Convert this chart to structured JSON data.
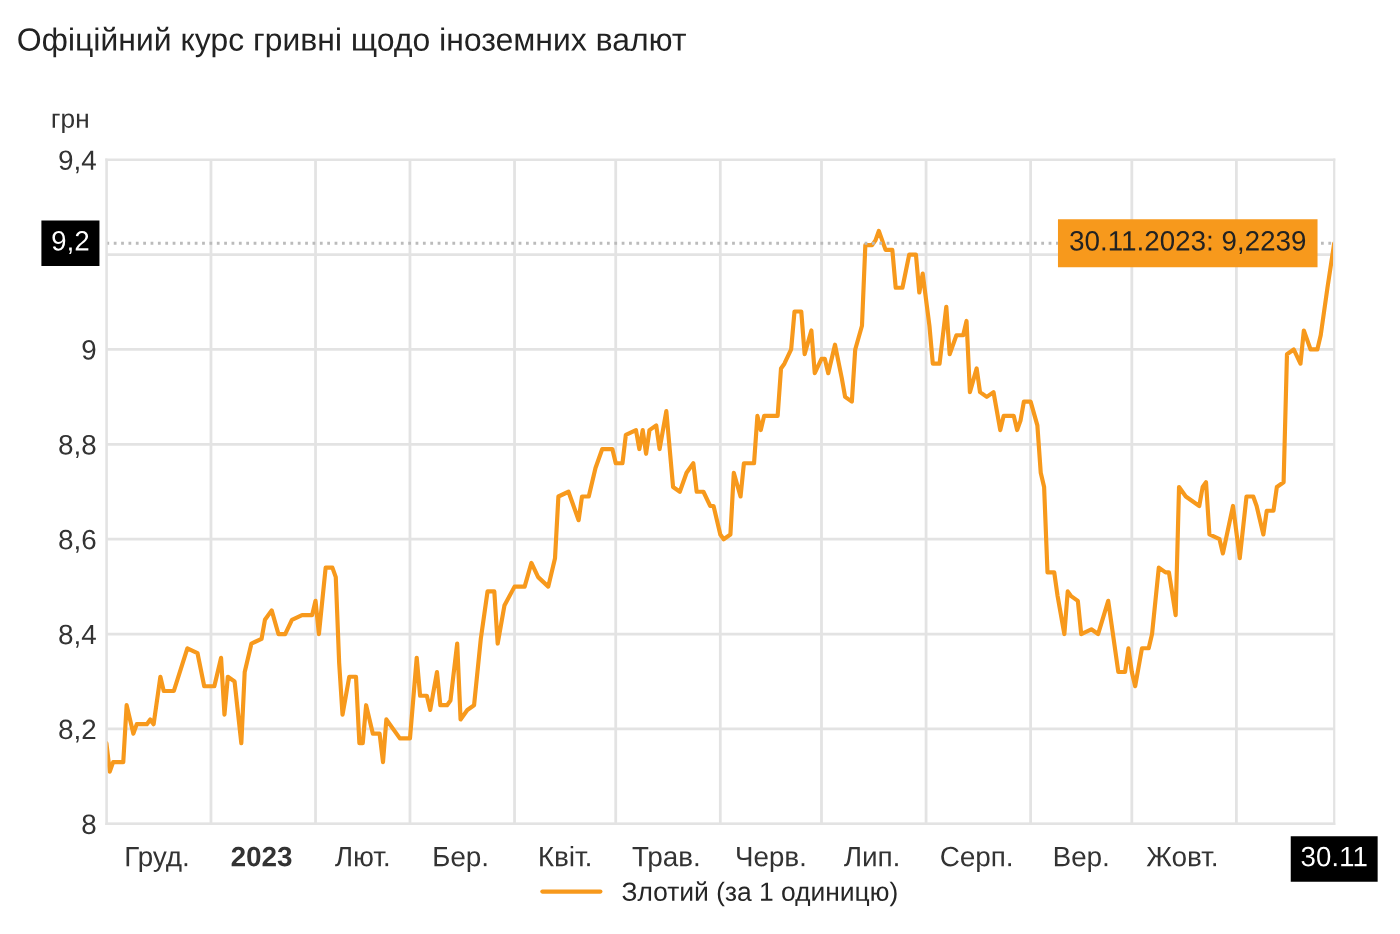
{
  "chart_data": {
    "type": "line",
    "title": "Офіційний курс гривні щодо іноземних валют",
    "ylabel": "грн",
    "xlim": [
      "2022-12-01",
      "2023-11-30"
    ],
    "ylim": [
      8,
      9.4
    ],
    "yticks": [
      8,
      {
        "value": 8.2,
        "label": "8,2"
      },
      {
        "value": 8.4,
        "label": "8,4"
      },
      {
        "value": 8.6,
        "label": "8,6"
      },
      {
        "value": 8.8,
        "label": "8,8"
      },
      9,
      {
        "value": 9.2,
        "label": null
      },
      {
        "value": 9.4,
        "label": "9,4"
      }
    ],
    "xticks": [
      {
        "value": "2022-12-01",
        "label": null
      },
      {
        "value": "2023-01-01",
        "label": null
      },
      {
        "value": "2023-02-01",
        "label": null
      },
      {
        "value": "2023-03-01",
        "label": null
      },
      {
        "value": "2023-04-01",
        "label": null
      },
      {
        "value": "2023-05-01",
        "label": null
      },
      {
        "value": "2023-06-01",
        "label": null
      },
      {
        "value": "2023-07-01",
        "label": null
      },
      {
        "value": "2023-08-01",
        "label": null
      },
      {
        "value": "2023-09-01",
        "label": null
      },
      {
        "value": "2023-10-01",
        "label": null
      },
      {
        "value": "2023-11-01",
        "label": null
      },
      {
        "value": "2022-12-16",
        "label": "Груд."
      },
      {
        "value": "2023-01-16",
        "label": "2023"
      },
      {
        "value": "2023-02-15",
        "label": "Лют."
      },
      {
        "value": "2023-03-16",
        "label": "Бер."
      },
      {
        "value": "2023-04-16",
        "label": "Квіт."
      },
      {
        "value": "2023-05-16",
        "label": "Трав."
      },
      {
        "value": "2023-06-16",
        "label": "Черв."
      },
      {
        "value": "2023-07-16",
        "label": "Лип."
      },
      {
        "value": "2023-08-16",
        "label": "Серп."
      },
      {
        "value": "2023-09-16",
        "label": "Вер."
      },
      {
        "value": "2023-10-16",
        "label": "Жовт."
      },
      {
        "value": "2023-11-30",
        "label": "30.11"
      }
    ],
    "grid": true,
    "legend": "bottom",
    "marker": "none",
    "line_style": "solid",
    "ref_lines": [
      {
        "axis": "y",
        "value": 9.2239,
        "label": "9,2",
        "color": "#bbbbbb",
        "line_style": "dotted"
      }
    ],
    "annotations": [
      {
        "text": "30.11.2023: 9,2239",
        "x": "2023-11-30",
        "y": 9.2239
      }
    ],
    "series": [
      {
        "name": "Злотий (за 1 одиницю)",
        "color": "#f7991c",
        "x": [
          "2022-12-01",
          "2022-12-02",
          "2022-12-03",
          "2022-12-06",
          "2022-12-07",
          "2022-12-09",
          "2022-12-10",
          "2022-12-13",
          "2022-12-14",
          "2022-12-15",
          "2022-12-17",
          "2022-12-18",
          "2022-12-21",
          "2022-12-25",
          "2022-12-28",
          "2022-12-30",
          "2022-12-31",
          "2023-01-02",
          "2023-01-04",
          "2023-01-05",
          "2023-01-06",
          "2023-01-08",
          "2023-01-10",
          "2023-01-11",
          "2023-01-13",
          "2023-01-16",
          "2023-01-17",
          "2023-01-19",
          "2023-01-21",
          "2023-01-23",
          "2023-01-25",
          "2023-01-28",
          "2023-01-31",
          "2023-02-01",
          "2023-02-02",
          "2023-02-04",
          "2023-02-06",
          "2023-02-07",
          "2023-02-08",
          "2023-02-09",
          "2023-02-11",
          "2023-02-13",
          "2023-02-14",
          "2023-02-15",
          "2023-02-16",
          "2023-02-18",
          "2023-02-20",
          "2023-02-21",
          "2023-02-22",
          "2023-02-25",
          "2023-02-26",
          "2023-03-01",
          "2023-03-03",
          "2023-03-04",
          "2023-03-06",
          "2023-03-07",
          "2023-03-09",
          "2023-03-10",
          "2023-03-12",
          "2023-03-13",
          "2023-03-15",
          "2023-03-16",
          "2023-03-18",
          "2023-03-20",
          "2023-03-22",
          "2023-03-24",
          "2023-03-26",
          "2023-03-27",
          "2023-03-29",
          "2023-04-01",
          "2023-04-04",
          "2023-04-06",
          "2023-04-08",
          "2023-04-11",
          "2023-04-13",
          "2023-04-14",
          "2023-04-17",
          "2023-04-18",
          "2023-04-20",
          "2023-04-21",
          "2023-04-23",
          "2023-04-25",
          "2023-04-27",
          "2023-04-30",
          "2023-05-01",
          "2023-05-03",
          "2023-05-04",
          "2023-05-07",
          "2023-05-08",
          "2023-05-09",
          "2023-05-10",
          "2023-05-11",
          "2023-05-13",
          "2023-05-14",
          "2023-05-16",
          "2023-05-18",
          "2023-05-20",
          "2023-05-22",
          "2023-05-24",
          "2023-05-25",
          "2023-05-27",
          "2023-05-29",
          "2023-05-30",
          "2023-06-01",
          "2023-06-02",
          "2023-06-04",
          "2023-06-05",
          "2023-06-07",
          "2023-06-08",
          "2023-06-11",
          "2023-06-12",
          "2023-06-13",
          "2023-06-14",
          "2023-06-16",
          "2023-06-18",
          "2023-06-19",
          "2023-06-20",
          "2023-06-22",
          "2023-06-23",
          "2023-06-25",
          "2023-06-26",
          "2023-06-28",
          "2023-06-29",
          "2023-07-01",
          "2023-07-02",
          "2023-07-03",
          "2023-07-05",
          "2023-07-07",
          "2023-07-08",
          "2023-07-10",
          "2023-07-11",
          "2023-07-13",
          "2023-07-14",
          "2023-07-16",
          "2023-07-17",
          "2023-07-18",
          "2023-07-20",
          "2023-07-22",
          "2023-07-23",
          "2023-07-25",
          "2023-07-27",
          "2023-07-29",
          "2023-07-30",
          "2023-07-31",
          "2023-08-02",
          "2023-08-03",
          "2023-08-05",
          "2023-08-07",
          "2023-08-08",
          "2023-08-10",
          "2023-08-12",
          "2023-08-13",
          "2023-08-14",
          "2023-08-16",
          "2023-08-17",
          "2023-08-19",
          "2023-08-21",
          "2023-08-23",
          "2023-08-24",
          "2023-08-27",
          "2023-08-28",
          "2023-08-29",
          "2023-08-30",
          "2023-09-01",
          "2023-09-03",
          "2023-09-04",
          "2023-09-05",
          "2023-09-06",
          "2023-09-08",
          "2023-09-09",
          "2023-09-11",
          "2023-09-12",
          "2023-09-13",
          "2023-09-15",
          "2023-09-16",
          "2023-09-19",
          "2023-09-21",
          "2023-09-24",
          "2023-09-25",
          "2023-09-27",
          "2023-09-29",
          "2023-09-30",
          "2023-10-01",
          "2023-10-02",
          "2023-10-04",
          "2023-10-06",
          "2023-10-07",
          "2023-10-09",
          "2023-10-11",
          "2023-10-12",
          "2023-10-14",
          "2023-10-15",
          "2023-10-17",
          "2023-10-21",
          "2023-10-22",
          "2023-10-23",
          "2023-10-24",
          "2023-10-27",
          "2023-10-28",
          "2023-10-31",
          "2023-11-02",
          "2023-11-04",
          "2023-11-06",
          "2023-11-07",
          "2023-11-09",
          "2023-11-10",
          "2023-11-12",
          "2023-11-13",
          "2023-11-15",
          "2023-11-16",
          "2023-11-18",
          "2023-11-20",
          "2023-11-21",
          "2023-11-23",
          "2023-11-25",
          "2023-11-26",
          "2023-11-28",
          "2023-11-30"
        ],
        "values": [
          8.17,
          8.11,
          8.13,
          8.13,
          8.25,
          8.19,
          8.21,
          8.21,
          8.22,
          8.21,
          8.31,
          8.28,
          8.28,
          8.37,
          8.36,
          8.29,
          8.29,
          8.29,
          8.35,
          8.23,
          8.31,
          8.3,
          8.17,
          8.32,
          8.38,
          8.39,
          8.43,
          8.45,
          8.4,
          8.4,
          8.43,
          8.44,
          8.44,
          8.47,
          8.4,
          8.54,
          8.54,
          8.52,
          8.34,
          8.23,
          8.31,
          8.31,
          8.17,
          8.17,
          8.25,
          8.19,
          8.19,
          8.13,
          8.22,
          8.19,
          8.18,
          8.18,
          8.35,
          8.27,
          8.27,
          8.24,
          8.32,
          8.25,
          8.25,
          8.26,
          8.38,
          8.22,
          8.24,
          8.25,
          8.39,
          8.49,
          8.49,
          8.38,
          8.46,
          8.5,
          8.5,
          8.55,
          8.52,
          8.5,
          8.56,
          8.69,
          8.7,
          8.68,
          8.64,
          8.69,
          8.69,
          8.75,
          8.79,
          8.79,
          8.76,
          8.76,
          8.82,
          8.83,
          8.79,
          8.83,
          8.78,
          8.83,
          8.84,
          8.79,
          8.87,
          8.71,
          8.7,
          8.74,
          8.76,
          8.7,
          8.7,
          8.67,
          8.67,
          8.61,
          8.6,
          8.61,
          8.74,
          8.69,
          8.76,
          8.76,
          8.86,
          8.83,
          8.86,
          8.86,
          8.86,
          8.96,
          8.97,
          9.0,
          9.08,
          9.08,
          8.99,
          9.04,
          8.95,
          8.98,
          8.98,
          8.95,
          9.01,
          8.94,
          8.9,
          8.89,
          9.0,
          9.05,
          9.22,
          9.22,
          9.23,
          9.25,
          9.21,
          9.21,
          9.13,
          9.13,
          9.2,
          9.2,
          9.12,
          9.16,
          9.05,
          8.97,
          8.97,
          9.09,
          8.99,
          9.03,
          9.03,
          9.06,
          8.91,
          8.96,
          8.91,
          8.9,
          8.91,
          8.83,
          8.86,
          8.86,
          8.83,
          8.85,
          8.89,
          8.89,
          8.84,
          8.74,
          8.71,
          8.53,
          8.53,
          8.48,
          8.4,
          8.49,
          8.48,
          8.47,
          8.4,
          8.41,
          8.4,
          8.47,
          8.42,
          8.32,
          8.32,
          8.37,
          8.32,
          8.29,
          8.37,
          8.37,
          8.4,
          8.54,
          8.53,
          8.53,
          8.44,
          8.71,
          8.69,
          8.67,
          8.71,
          8.72,
          8.61,
          8.6,
          8.57,
          8.67,
          8.56,
          8.69,
          8.69,
          8.67,
          8.61,
          8.66,
          8.66,
          8.71,
          8.72,
          8.99,
          9.0,
          8.97,
          9.04,
          9.0,
          9.0,
          9.03,
          9.13,
          9.2239
        ]
      }
    ]
  }
}
